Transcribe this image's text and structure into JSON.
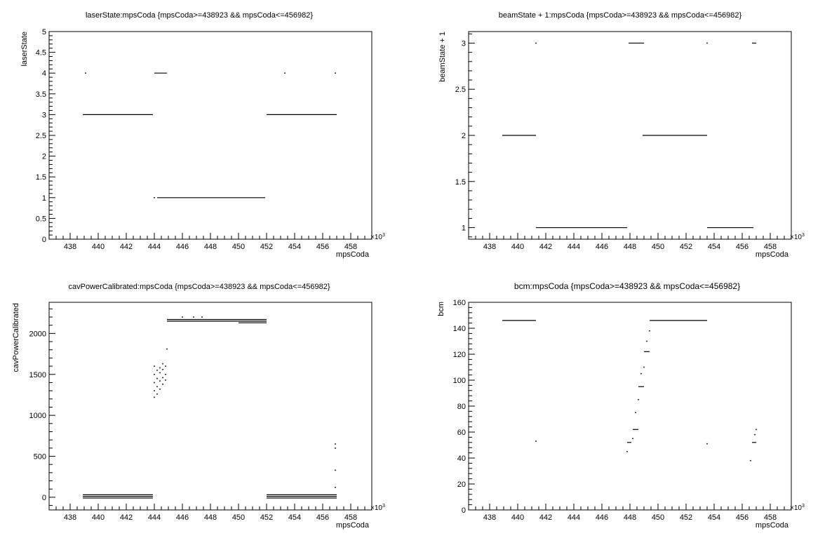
{
  "panels": [
    {
      "title": "laserState:mpsCoda {mpsCoda>=438923 && mpsCoda<=456982}",
      "xlabel": "mpsCoda",
      "ylabel": "laserState",
      "x_multiplier": "×10",
      "x_exponent": "3",
      "xticks": [
        "438",
        "440",
        "442",
        "444",
        "446",
        "448",
        "450",
        "452",
        "454",
        "456",
        "458"
      ],
      "yticks": [
        "0",
        "0.5",
        "1",
        "1.5",
        "2",
        "2.5",
        "3",
        "3.5",
        "4",
        "4.5",
        "5"
      ]
    },
    {
      "title": "beamState + 1:mpsCoda {mpsCoda>=438923 && mpsCoda<=456982}",
      "xlabel": "mpsCoda",
      "ylabel": "beamState + 1",
      "x_multiplier": "×10",
      "x_exponent": "3",
      "xticks": [
        "438",
        "440",
        "442",
        "444",
        "446",
        "448",
        "450",
        "452",
        "454",
        "456",
        "458"
      ],
      "yticks": [
        "1",
        "1.5",
        "2",
        "2.5",
        "3"
      ]
    },
    {
      "title": "cavPowerCalibrated:mpsCoda {mpsCoda>=438923 && mpsCoda<=456982}",
      "xlabel": "mpsCoda",
      "ylabel": "cavPowerCalibrated",
      "x_multiplier": "×10",
      "x_exponent": "3",
      "xticks": [
        "438",
        "440",
        "442",
        "444",
        "446",
        "448",
        "450",
        "452",
        "454",
        "456",
        "458"
      ],
      "yticks": [
        "0",
        "500",
        "1000",
        "1500",
        "2000"
      ]
    },
    {
      "title": "bcm:mpsCoda {mpsCoda>=438923 && mpsCoda<=456982}",
      "xlabel": "mpsCoda",
      "ylabel": "bcm",
      "x_multiplier": "×10",
      "x_exponent": "3",
      "xticks": [
        "438",
        "440",
        "442",
        "444",
        "446",
        "448",
        "450",
        "452",
        "454",
        "456",
        "458"
      ],
      "yticks": [
        "0",
        "20",
        "40",
        "60",
        "80",
        "100",
        "120",
        "140",
        "160"
      ]
    }
  ],
  "chart_data": [
    {
      "type": "scatter",
      "title": "laserState:mpsCoda {mpsCoda>=438923 && mpsCoda<=456982}",
      "xlabel": "mpsCoda",
      "ylabel": "laserState",
      "xlim": [
        436.5,
        459.5
      ],
      "ylim": [
        0,
        5
      ],
      "x_unit_multiplier": 1000,
      "segments": [
        {
          "x": [
            438.9,
            443.9
          ],
          "y": 3
        },
        {
          "x": [
            444.0,
            444.9
          ],
          "y": 4
        },
        {
          "x": [
            444.2,
            451.9
          ],
          "y": 1
        },
        {
          "x": [
            452.0,
            457.0
          ],
          "y": 3
        }
      ],
      "points": [
        {
          "x": 439.1,
          "y": 4
        },
        {
          "x": 444.0,
          "y": 1
        },
        {
          "x": 453.3,
          "y": 4
        },
        {
          "x": 456.9,
          "y": 4
        }
      ]
    },
    {
      "type": "scatter",
      "title": "beamState + 1:mpsCoda {mpsCoda>=438923 && mpsCoda<=456982}",
      "xlabel": "mpsCoda",
      "ylabel": "beamState + 1",
      "xlim": [
        436.5,
        459.5
      ],
      "ylim": [
        0.875,
        3.125
      ],
      "x_unit_multiplier": 1000,
      "segments": [
        {
          "x": [
            438.9,
            441.3
          ],
          "y": 2
        },
        {
          "x": [
            441.3,
            447.8
          ],
          "y": 1
        },
        {
          "x": [
            447.9,
            449.0
          ],
          "y": 3
        },
        {
          "x": [
            448.9,
            453.5
          ],
          "y": 2
        },
        {
          "x": [
            453.5,
            456.8
          ],
          "y": 1
        },
        {
          "x": [
            456.7,
            457.0
          ],
          "y": 3
        }
      ],
      "points": [
        {
          "x": 441.3,
          "y": 3
        },
        {
          "x": 453.5,
          "y": 3
        }
      ]
    },
    {
      "type": "scatter",
      "title": "cavPowerCalibrated:mpsCoda {mpsCoda>=438923 && mpsCoda<=456982}",
      "xlabel": "mpsCoda",
      "ylabel": "cavPowerCalibrated",
      "xlim": [
        436.5,
        459.5
      ],
      "ylim": [
        -155,
        2380
      ],
      "x_unit_multiplier": 1000,
      "segments": [
        {
          "x": [
            438.9,
            443.9
          ],
          "y": 30
        },
        {
          "x": [
            438.9,
            443.9
          ],
          "y": 10
        },
        {
          "x": [
            438.9,
            443.9
          ],
          "y": -10
        },
        {
          "x": [
            444.9,
            452.0
          ],
          "y": 2170
        },
        {
          "x": [
            444.9,
            452.0
          ],
          "y": 2150
        },
        {
          "x": [
            450.0,
            452.0
          ],
          "y": 2130
        },
        {
          "x": [
            452.0,
            457.0
          ],
          "y": 30
        },
        {
          "x": [
            452.0,
            457.0
          ],
          "y": 10
        },
        {
          "x": [
            452.0,
            457.0
          ],
          "y": -10
        }
      ],
      "points": [
        {
          "x": 444.0,
          "y": 1220
        },
        {
          "x": 444.0,
          "y": 1300
        },
        {
          "x": 444.0,
          "y": 1400
        },
        {
          "x": 444.0,
          "y": 1500
        },
        {
          "x": 444.0,
          "y": 1600
        },
        {
          "x": 444.2,
          "y": 1260
        },
        {
          "x": 444.2,
          "y": 1350
        },
        {
          "x": 444.2,
          "y": 1450
        },
        {
          "x": 444.2,
          "y": 1550
        },
        {
          "x": 444.4,
          "y": 1320
        },
        {
          "x": 444.4,
          "y": 1420
        },
        {
          "x": 444.4,
          "y": 1520
        },
        {
          "x": 444.4,
          "y": 1580
        },
        {
          "x": 444.6,
          "y": 1380
        },
        {
          "x": 444.6,
          "y": 1460
        },
        {
          "x": 444.6,
          "y": 1560
        },
        {
          "x": 444.6,
          "y": 1630
        },
        {
          "x": 444.8,
          "y": 1430
        },
        {
          "x": 444.8,
          "y": 1500
        },
        {
          "x": 444.8,
          "y": 1600
        },
        {
          "x": 444.9,
          "y": 1810
        },
        {
          "x": 446.0,
          "y": 2200
        },
        {
          "x": 446.8,
          "y": 2200
        },
        {
          "x": 447.4,
          "y": 2200
        },
        {
          "x": 456.9,
          "y": 120
        },
        {
          "x": 456.9,
          "y": 330
        },
        {
          "x": 456.9,
          "y": 600
        },
        {
          "x": 456.9,
          "y": 650
        }
      ]
    },
    {
      "type": "scatter",
      "title": "bcm:mpsCoda {mpsCoda>=438923 && mpsCoda<=456982}",
      "xlabel": "mpsCoda",
      "ylabel": "bcm",
      "xlim": [
        436.5,
        459.5
      ],
      "ylim": [
        0,
        160
      ],
      "x_unit_multiplier": 1000,
      "segments": [
        {
          "x": [
            438.9,
            441.3
          ],
          "y": 146
        },
        {
          "x": [
            447.8,
            448.1
          ],
          "y": 52
        },
        {
          "x": [
            448.2,
            448.6
          ],
          "y": 62
        },
        {
          "x": [
            448.6,
            449.0
          ],
          "y": 95
        },
        {
          "x": [
            449.0,
            449.4
          ],
          "y": 122
        },
        {
          "x": [
            449.4,
            453.5
          ],
          "y": 146
        },
        {
          "x": [
            456.7,
            457.0
          ],
          "y": 52
        }
      ],
      "points": [
        {
          "x": 441.3,
          "y": 53
        },
        {
          "x": 447.8,
          "y": 45
        },
        {
          "x": 453.5,
          "y": 51
        },
        {
          "x": 456.6,
          "y": 38
        },
        {
          "x": 448.2,
          "y": 55
        },
        {
          "x": 448.4,
          "y": 75
        },
        {
          "x": 448.6,
          "y": 85
        },
        {
          "x": 448.8,
          "y": 105
        },
        {
          "x": 449.0,
          "y": 110
        },
        {
          "x": 449.2,
          "y": 130
        },
        {
          "x": 449.4,
          "y": 138
        },
        {
          "x": 456.9,
          "y": 58
        },
        {
          "x": 457.0,
          "y": 62
        }
      ]
    }
  ]
}
